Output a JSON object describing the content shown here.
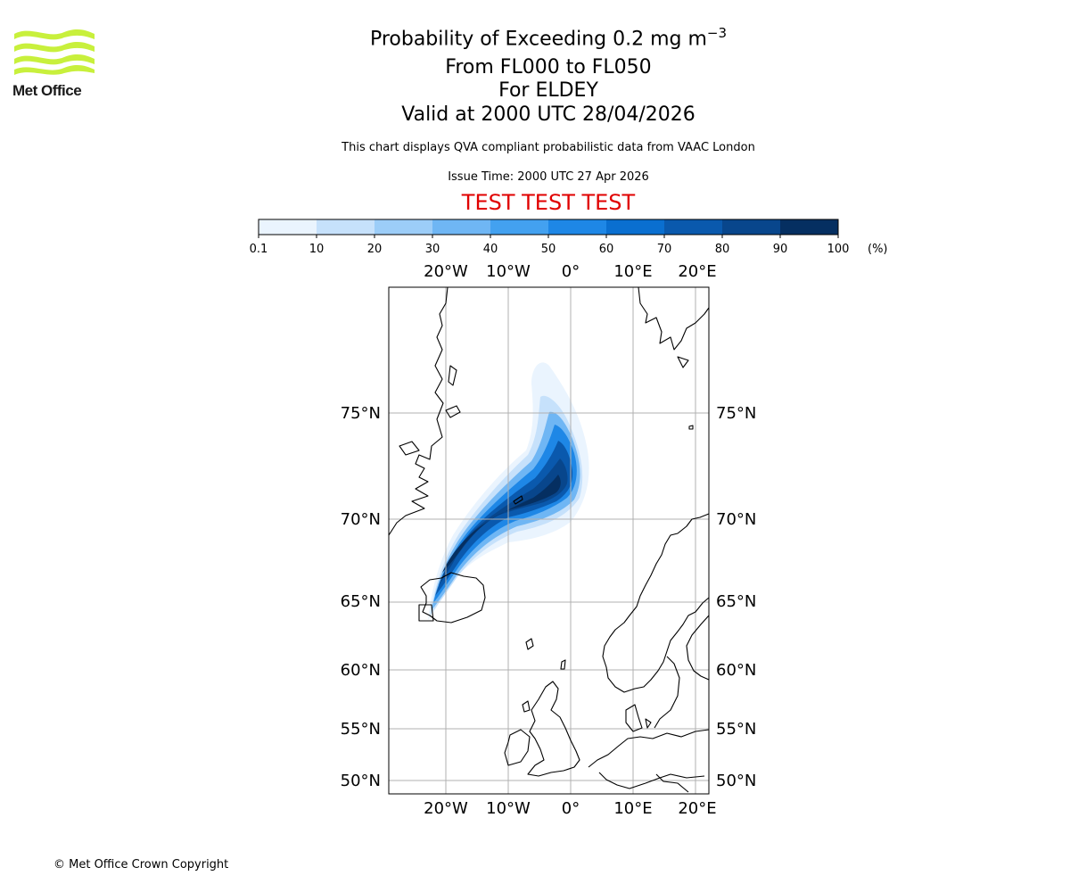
{
  "header": {
    "logo_text": "Met Office",
    "title_main": "Probability of Exceeding 0.2 mg m",
    "title_exponent": "−3",
    "levels": "From FL000 to FL050",
    "volcano": "For ELDEY",
    "valid": "Valid at 2000 UTC 28/04/2026",
    "description": "This chart displays QVA compliant probabilistic data from VAAC London",
    "issue_time": "Issue Time: 2000 UTC 27 Apr 2026",
    "test_banner": "TEST TEST TEST"
  },
  "colorbar": {
    "ticks": [
      "0.1",
      "10",
      "20",
      "30",
      "40",
      "50",
      "60",
      "70",
      "80",
      "90",
      "100"
    ],
    "unit": "(%)",
    "colors": [
      "#eaf4fe",
      "#c6e1fb",
      "#9ccdf8",
      "#6fb6f4",
      "#43a1f0",
      "#1e87e6",
      "#0a6fd0",
      "#0a59ad",
      "#08468c",
      "#052f61"
    ]
  },
  "map": {
    "lon_labels": [
      "20°W",
      "10°W",
      "0°",
      "10°E",
      "20°E"
    ],
    "lat_labels": [
      "75°N",
      "70°N",
      "65°N",
      "60°N",
      "55°N",
      "50°N"
    ],
    "coast_color": "#000000",
    "grid_color": "#b0b0b0"
  },
  "footer": {
    "copyright": "© Met Office Crown Copyright"
  }
}
